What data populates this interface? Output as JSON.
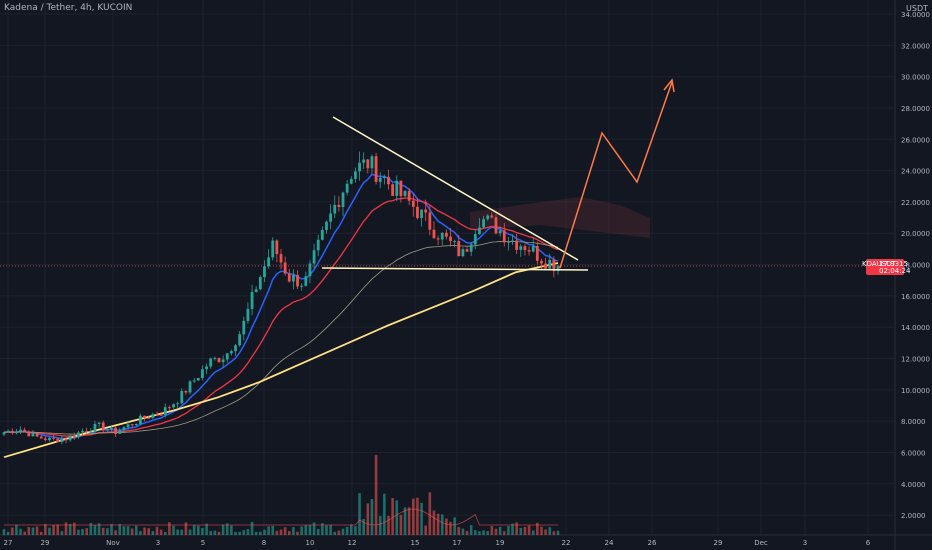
{
  "header": {
    "title": "Kadena / Tether, 4h, KUCOIN"
  },
  "currency": "USDT",
  "last_price": {
    "symbol": "KDAUSDT",
    "value": "17.9315",
    "countdown": "02:04:24",
    "color": "#f23645"
  },
  "colors": {
    "bg": "#131722",
    "grid": "#1e222d",
    "up": "#26a69a",
    "down": "#ef5350",
    "ema_fast": "#2962ff",
    "ema_mid": "#f23645",
    "ema_slow": "#ffe082",
    "trend": "#fff8c4",
    "projection": "#ff7a45"
  },
  "axis": {
    "y_ticks": [
      "34.0000",
      "32.0000",
      "30.0000",
      "28.0000",
      "26.0000",
      "24.0000",
      "22.0000",
      "20.0000",
      "18.0000",
      "16.0000",
      "14.0000",
      "12.0000",
      "10.0000",
      "8.0000",
      "6.0000",
      "4.0000",
      "2.0000"
    ],
    "x_ticks": [
      "27",
      "29",
      "Nov",
      "3",
      "5",
      "8",
      "10",
      "12",
      "15",
      "17",
      "19",
      "22",
      "24",
      "26",
      "29",
      "Dec",
      "3",
      "6"
    ]
  },
  "chart_data": {
    "type": "candlestick",
    "title": "Kadena / Tether, 4h, KUCOIN",
    "ylim": [
      0.5,
      34.5
    ],
    "x_categories": [
      "27",
      "29",
      "Nov",
      "3",
      "5",
      "8",
      "10",
      "12",
      "15",
      "17",
      "19",
      "22",
      "24",
      "26",
      "29",
      "Dec",
      "3",
      "6"
    ],
    "close_series_approx": [
      7.3,
      7.5,
      7.0,
      6.8,
      6.9,
      7.4,
      7.7,
      7.3,
      7.8,
      8.3,
      8.6,
      9.4,
      10.6,
      11.8,
      12.2,
      13.8,
      16.8,
      19.2,
      17.2,
      16.8,
      19.5,
      22.0,
      24.0,
      24.5,
      23.5,
      22.5,
      21.6,
      20.4,
      19.5,
      18.6,
      21.0,
      20.5,
      19.6,
      19.2,
      18.4,
      17.9
    ],
    "last_close": 17.9315,
    "moving_average_200": [
      2.0,
      2.8,
      3.6,
      4.3,
      5.0,
      5.8,
      6.8,
      8.0,
      9.2,
      10.4,
      11.5,
      12.6,
      13.8,
      14.4
    ],
    "annotations": {
      "descending_trendline": [
        [
          26.0,
          27.6
        ],
        [
          [
            22.0,
            18.3
          ]
        ]
      ],
      "support_line": 18.4,
      "projected_path": [
        18.0,
        25.6,
        23.5,
        30.5
      ]
    }
  }
}
